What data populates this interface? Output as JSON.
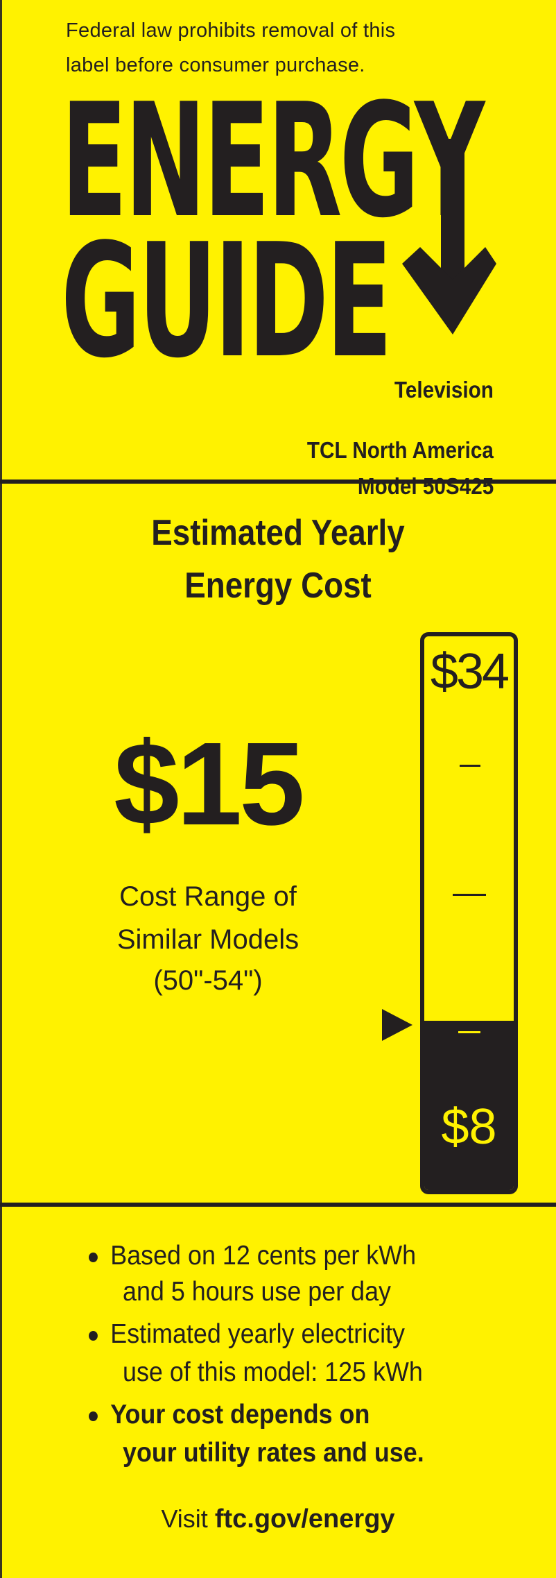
{
  "notice": {
    "line1": "Federal law prohibits removal of this",
    "line2": "label before consumer purchase."
  },
  "logo": {
    "line1": "ENERGY",
    "line2": "GUIDE",
    "icon": "down-arrow-icon"
  },
  "product": {
    "type": "Television",
    "manufacturer": "TCL North America",
    "model": "Model 50S425"
  },
  "heading": {
    "line1": "Estimated Yearly",
    "line2": "Energy Cost"
  },
  "cost": {
    "value": "$15",
    "range_line1": "Cost Range of",
    "range_line2": "Similar Models",
    "range_line3": "(50\"-54\")"
  },
  "scale": {
    "max_label": "$34",
    "min_label": "$8",
    "min": 8,
    "max": 34,
    "marker": 15
  },
  "bullets": [
    {
      "line1": "Based on 12 cents per kWh",
      "line2": "and 5 hours use per day"
    },
    {
      "line1": "Estimated yearly electricity",
      "line2": "use of this model: 125 kWh"
    },
    {
      "line1": "Your cost depends on",
      "line2": "your utility rates and use."
    }
  ],
  "footer": {
    "visit": "Visit",
    "link": "ftc.gov/energy"
  },
  "colors": {
    "background": "#FFF200",
    "ink": "#231F20"
  }
}
